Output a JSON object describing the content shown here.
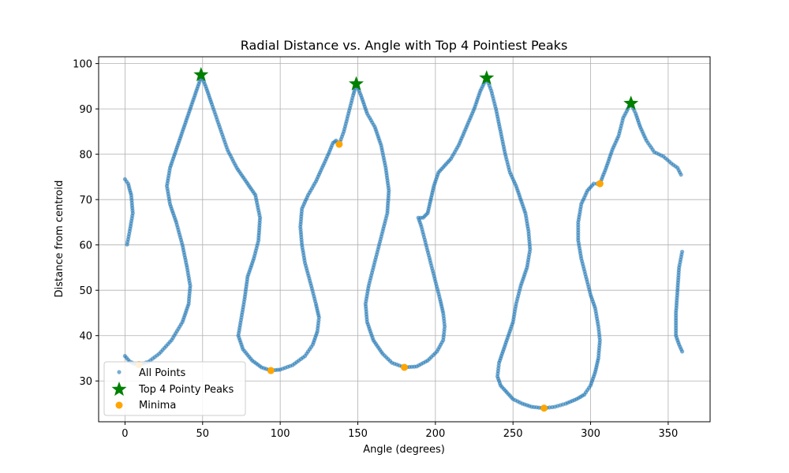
{
  "chart_data": {
    "type": "scatter",
    "title": "Radial Distance vs. Angle with Top 4 Pointiest Peaks",
    "xlabel": "Angle (degrees)",
    "ylabel": "Distance from centroid",
    "xlim": [
      -17,
      377
    ],
    "ylim": [
      21,
      101.5
    ],
    "xticks": [
      0,
      50,
      100,
      150,
      200,
      250,
      300,
      350
    ],
    "yticks": [
      30,
      40,
      50,
      60,
      70,
      80,
      90,
      100
    ],
    "grid": true,
    "legend_position": "lower-left",
    "colors": {
      "all_points": "#1f77b4",
      "peaks": "#008000",
      "minima": "#ffa500"
    },
    "series": [
      {
        "name": "All Points",
        "marker": "circle",
        "trace": [
          [
            0,
            74.5
          ],
          [
            2,
            73.5
          ],
          [
            4,
            71
          ],
          [
            5,
            67
          ],
          [
            3,
            63
          ],
          [
            1,
            59.5
          ],
          [
            0,
            35.5
          ],
          [
            3,
            34.3
          ],
          [
            6,
            33.8
          ],
          [
            9,
            33.6
          ],
          [
            15,
            34.2
          ],
          [
            22,
            36
          ],
          [
            30,
            39
          ],
          [
            37,
            43
          ],
          [
            41,
            47
          ],
          [
            42,
            51
          ],
          [
            40,
            55
          ],
          [
            37,
            60
          ],
          [
            33,
            65
          ],
          [
            29,
            69
          ],
          [
            27,
            73
          ],
          [
            29,
            77
          ],
          [
            33,
            81
          ],
          [
            37,
            85
          ],
          [
            41,
            89
          ],
          [
            45,
            93
          ],
          [
            48,
            96
          ],
          [
            49,
            97.5
          ],
          [
            52,
            95
          ],
          [
            56,
            91
          ],
          [
            61,
            86
          ],
          [
            66,
            81
          ],
          [
            72,
            77
          ],
          [
            78,
            74
          ],
          [
            84,
            71
          ],
          [
            87,
            66
          ],
          [
            86,
            61
          ],
          [
            83,
            57
          ],
          [
            79,
            53
          ],
          [
            77,
            48
          ],
          [
            75,
            44
          ],
          [
            73,
            40
          ],
          [
            76,
            37
          ],
          [
            82,
            34.5
          ],
          [
            88,
            33
          ],
          [
            94,
            32.3
          ],
          [
            100,
            32.5
          ],
          [
            108,
            33.5
          ],
          [
            116,
            35.5
          ],
          [
            121,
            38
          ],
          [
            124,
            41
          ],
          [
            125,
            44
          ],
          [
            123,
            47
          ],
          [
            120,
            51
          ],
          [
            116,
            56
          ],
          [
            114,
            60
          ],
          [
            113,
            64
          ],
          [
            114,
            68
          ],
          [
            118,
            71
          ],
          [
            123,
            74
          ],
          [
            127,
            77
          ],
          [
            131,
            80
          ],
          [
            134,
            82.5
          ],
          [
            136,
            83
          ],
          [
            138,
            82.2
          ],
          [
            141,
            85
          ],
          [
            144,
            89
          ],
          [
            147,
            93
          ],
          [
            149,
            95.5
          ],
          [
            152,
            93
          ],
          [
            156,
            89
          ],
          [
            161,
            86
          ],
          [
            165,
            82
          ],
          [
            168,
            77
          ],
          [
            170,
            72
          ],
          [
            169,
            67
          ],
          [
            166,
            63
          ],
          [
            163,
            59
          ],
          [
            160,
            55
          ],
          [
            157,
            51
          ],
          [
            155,
            47
          ],
          [
            156,
            43
          ],
          [
            160,
            39
          ],
          [
            166,
            36
          ],
          [
            172,
            34
          ],
          [
            180,
            33
          ],
          [
            188,
            33.2
          ],
          [
            195,
            34.5
          ],
          [
            201,
            36.5
          ],
          [
            205,
            39
          ],
          [
            206,
            42
          ],
          [
            205,
            45
          ],
          [
            203,
            48
          ],
          [
            200,
            52
          ],
          [
            197,
            56
          ],
          [
            194,
            60
          ],
          [
            191,
            64
          ],
          [
            189,
            66
          ],
          [
            192,
            66
          ],
          [
            195,
            67
          ],
          [
            197,
            70
          ],
          [
            199,
            73
          ],
          [
            202,
            76
          ],
          [
            206,
            77.5
          ],
          [
            210,
            79
          ],
          [
            215,
            82
          ],
          [
            220,
            86
          ],
          [
            225,
            90
          ],
          [
            229,
            94
          ],
          [
            233,
            96.8
          ],
          [
            236,
            94
          ],
          [
            239,
            90
          ],
          [
            242,
            85
          ],
          [
            245,
            80
          ],
          [
            248,
            76
          ],
          [
            252,
            73
          ],
          [
            255,
            70
          ],
          [
            258,
            67
          ],
          [
            260,
            63
          ],
          [
            261,
            59
          ],
          [
            259,
            55
          ],
          [
            255,
            51
          ],
          [
            252,
            47
          ],
          [
            250,
            43
          ],
          [
            247,
            40
          ],
          [
            244,
            37
          ],
          [
            241,
            34
          ],
          [
            240,
            31
          ],
          [
            242,
            29
          ],
          [
            246,
            27.5
          ],
          [
            250,
            26
          ],
          [
            256,
            25
          ],
          [
            262,
            24.3
          ],
          [
            270,
            24
          ],
          [
            277,
            24.3
          ],
          [
            284,
            25
          ],
          [
            291,
            26
          ],
          [
            296,
            27
          ],
          [
            300,
            29
          ],
          [
            303,
            32
          ],
          [
            305,
            35
          ],
          [
            306,
            39
          ],
          [
            305,
            42
          ],
          [
            303,
            46
          ],
          [
            300,
            49
          ],
          [
            297,
            53
          ],
          [
            294,
            57
          ],
          [
            292,
            61
          ],
          [
            292,
            65
          ],
          [
            294,
            69
          ],
          [
            298,
            72
          ],
          [
            302,
            73.5
          ],
          [
            306,
            73.5
          ],
          [
            310,
            77
          ],
          [
            314,
            81
          ],
          [
            318,
            84
          ],
          [
            321,
            88
          ],
          [
            324,
            90
          ],
          [
            326,
            91.2
          ],
          [
            329,
            89
          ],
          [
            332,
            86
          ],
          [
            336,
            83
          ],
          [
            341,
            80.5
          ],
          [
            347,
            79.5
          ],
          [
            352,
            78
          ],
          [
            356,
            77
          ],
          [
            359,
            75
          ],
          [
            359,
            58.5
          ],
          [
            357,
            55
          ],
          [
            356,
            50
          ],
          [
            355,
            45
          ],
          [
            355,
            40
          ],
          [
            357,
            38
          ],
          [
            359,
            36.5
          ]
        ]
      },
      {
        "name": "Top 4 Pointy Peaks",
        "marker": "star",
        "points": [
          [
            49,
            97.5
          ],
          [
            149,
            95.5
          ],
          [
            233,
            96.8
          ],
          [
            326,
            91.2
          ]
        ]
      },
      {
        "name": "Minima",
        "marker": "circle",
        "points": [
          [
            9,
            33.6
          ],
          [
            94,
            32.3
          ],
          [
            138,
            82.2
          ],
          [
            180,
            33
          ],
          [
            270,
            24
          ],
          [
            306,
            73.5
          ]
        ]
      }
    ]
  }
}
